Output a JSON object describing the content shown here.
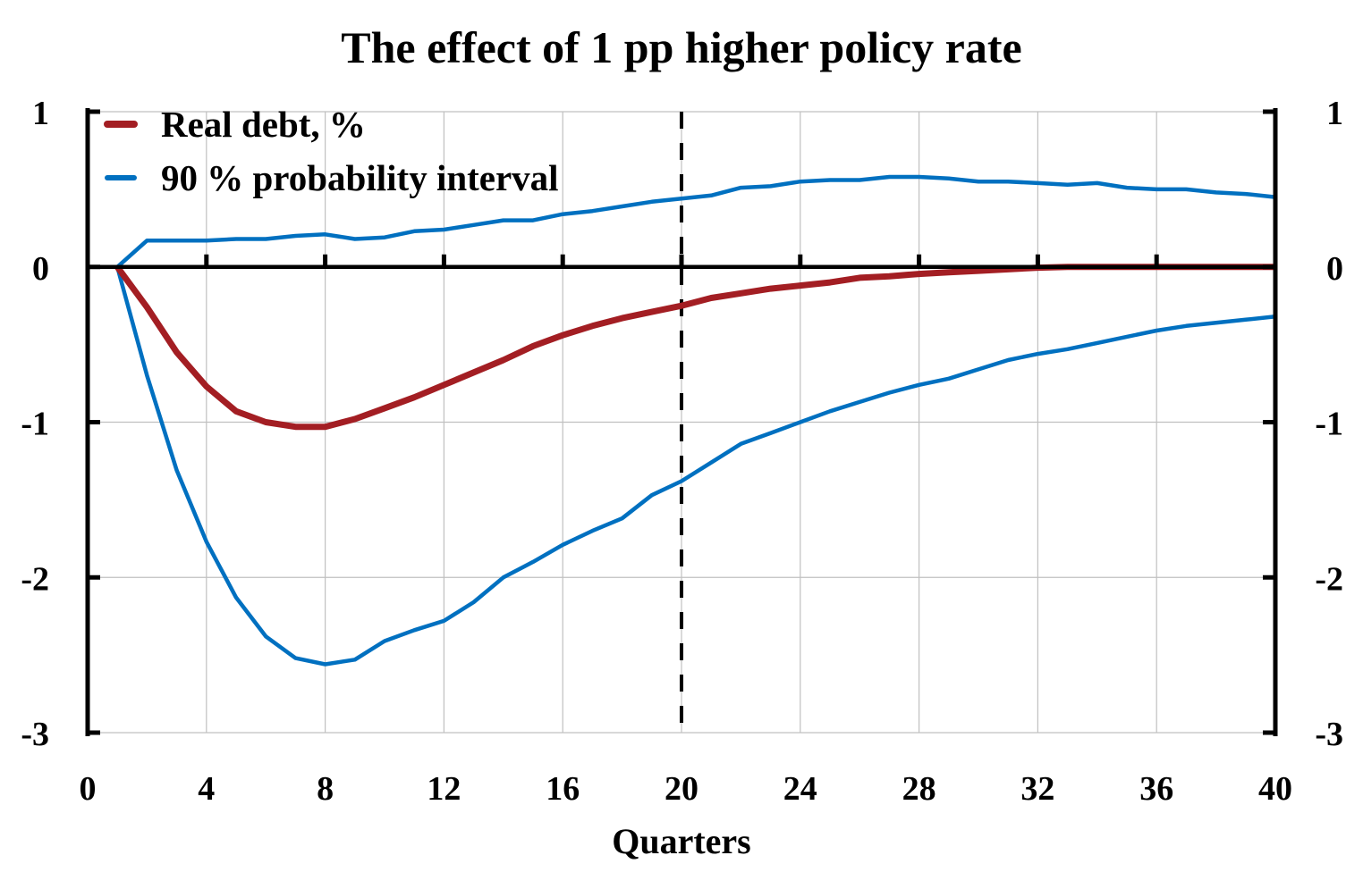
{
  "chart_data": {
    "type": "line",
    "title": "The effect of 1 pp higher policy rate",
    "xlabel": "Quarters",
    "ylabel": "",
    "xlim": [
      0,
      40
    ],
    "ylim": [
      -3,
      1
    ],
    "x_ticks": [
      0,
      4,
      8,
      12,
      16,
      20,
      24,
      28,
      32,
      36,
      40
    ],
    "x_tick_labels": [
      "0",
      "4",
      "8",
      "12",
      "16",
      "20",
      "24",
      "28",
      "32",
      "36",
      "40"
    ],
    "y_ticks": [
      1,
      0,
      -1,
      -2,
      -3
    ],
    "y_tick_labels_left": [
      "1",
      "0",
      "-1",
      "-2",
      "-3"
    ],
    "y_tick_labels_right": [
      "1",
      "0",
      "-1",
      "-2",
      "-3"
    ],
    "grid": true,
    "reference_lines": [
      {
        "orientation": "vertical",
        "x": 20,
        "style": "dashed",
        "color": "#000000"
      },
      {
        "orientation": "horizontal",
        "y": 0,
        "style": "solid",
        "color": "#000000"
      }
    ],
    "legend": {
      "placement": "top-left",
      "entries": [
        {
          "label": "Real debt, %",
          "color": "#A31E23"
        },
        {
          "label": "90 % probability interval",
          "color": "#0070C0"
        }
      ]
    },
    "x": [
      1,
      2,
      3,
      4,
      5,
      6,
      7,
      8,
      9,
      10,
      11,
      12,
      13,
      14,
      15,
      16,
      17,
      18,
      19,
      20,
      21,
      22,
      23,
      24,
      25,
      26,
      27,
      28,
      29,
      30,
      31,
      32,
      33,
      34,
      35,
      36,
      37,
      38,
      39,
      40
    ],
    "series": [
      {
        "name": "Real debt, %",
        "color": "#A31E23",
        "values": [
          0,
          -0.26,
          -0.55,
          -0.77,
          -0.93,
          -1.0,
          -1.03,
          -1.03,
          -0.98,
          -0.91,
          -0.84,
          -0.76,
          -0.68,
          -0.6,
          -0.51,
          -0.44,
          -0.38,
          -0.33,
          -0.29,
          -0.25,
          -0.2,
          -0.17,
          -0.14,
          -0.12,
          -0.1,
          -0.07,
          -0.06,
          -0.045,
          -0.035,
          -0.025,
          -0.015,
          -0.005,
          0,
          0,
          0,
          0,
          0,
          0,
          0,
          0
        ]
      },
      {
        "name": "90 % probability interval (upper)",
        "color": "#0070C0",
        "values": [
          0,
          0.17,
          0.17,
          0.17,
          0.18,
          0.18,
          0.2,
          0.21,
          0.18,
          0.19,
          0.23,
          0.24,
          0.27,
          0.3,
          0.3,
          0.34,
          0.36,
          0.39,
          0.42,
          0.44,
          0.46,
          0.51,
          0.52,
          0.55,
          0.56,
          0.56,
          0.58,
          0.58,
          0.57,
          0.55,
          0.55,
          0.54,
          0.53,
          0.54,
          0.51,
          0.5,
          0.5,
          0.48,
          0.47,
          0.45
        ]
      },
      {
        "name": "90 % probability interval (lower)",
        "color": "#0070C0",
        "values": [
          0,
          -0.7,
          -1.31,
          -1.77,
          -2.13,
          -2.38,
          -2.52,
          -2.56,
          -2.53,
          -2.41,
          -2.34,
          -2.28,
          -2.16,
          -2.0,
          -1.9,
          -1.79,
          -1.7,
          -1.62,
          -1.47,
          -1.38,
          -1.26,
          -1.14,
          -1.07,
          -1.0,
          -0.93,
          -0.87,
          -0.81,
          -0.76,
          -0.72,
          -0.66,
          -0.6,
          -0.56,
          -0.53,
          -0.49,
          -0.45,
          -0.41,
          -0.38,
          -0.36,
          -0.34,
          -0.32
        ]
      }
    ]
  }
}
